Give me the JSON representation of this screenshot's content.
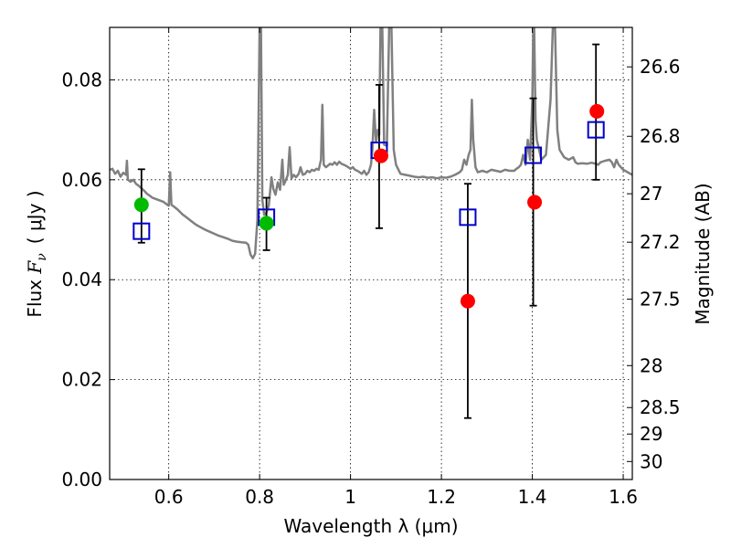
{
  "chart_data": {
    "type": "scatter",
    "xlabel": "Wavelength  λ (μm)",
    "ylabel": "Flux  F_ν  ( μJy )",
    "ylabel_parts": {
      "prefix": "Flux ",
      "symbol": "F",
      "subscript": "ν",
      "unit": "( μJy )"
    },
    "y2label": "Magnitude (AB)",
    "xlim": [
      0.47,
      1.62
    ],
    "ylim": [
      0.0,
      0.0905
    ],
    "x_ticks": [
      0.6,
      0.8,
      1.0,
      1.2,
      1.4,
      1.6
    ],
    "x_tick_labels": [
      "0.6",
      "0.8",
      "1",
      "1.2",
      "1.4",
      "1.6"
    ],
    "y_ticks": [
      0.0,
      0.02,
      0.04,
      0.06,
      0.08
    ],
    "y_tick_labels": [
      "0.00",
      "0.02",
      "0.04",
      "0.06",
      "0.08"
    ],
    "y2_ticks": [
      {
        "label": "26.6",
        "flux": 0.0826
      },
      {
        "label": "26.8",
        "flux": 0.0687
      },
      {
        "label": "27",
        "flux": 0.0572
      },
      {
        "label": "27.2",
        "flux": 0.0475
      },
      {
        "label": "27.5",
        "flux": 0.0361
      },
      {
        "label": "28",
        "flux": 0.0228
      },
      {
        "label": "28.5",
        "flux": 0.0144
      },
      {
        "label": "29",
        "flux": 0.0091
      },
      {
        "label": "30",
        "flux": 0.0036
      }
    ],
    "grid": true,
    "series": [
      {
        "name": "model spectrum",
        "kind": "line",
        "color": "#808080",
        "points": [
          [
            0.47,
            0.062
          ],
          [
            0.476,
            0.0622
          ],
          [
            0.482,
            0.0612
          ],
          [
            0.488,
            0.0618
          ],
          [
            0.494,
            0.0606
          ],
          [
            0.5,
            0.0614
          ],
          [
            0.506,
            0.061
          ],
          [
            0.508,
            0.0638
          ],
          [
            0.51,
            0.06
          ],
          [
            0.516,
            0.0596
          ],
          [
            0.522,
            0.06
          ],
          [
            0.528,
            0.0592
          ],
          [
            0.534,
            0.0588
          ],
          [
            0.54,
            0.0583
          ],
          [
            0.546,
            0.0578
          ],
          [
            0.552,
            0.0572
          ],
          [
            0.558,
            0.0568
          ],
          [
            0.564,
            0.0564
          ],
          [
            0.57,
            0.0562
          ],
          [
            0.576,
            0.056
          ],
          [
            0.582,
            0.0558
          ],
          [
            0.588,
            0.0556
          ],
          [
            0.594,
            0.0552
          ],
          [
            0.6,
            0.0548
          ],
          [
            0.603,
            0.0615
          ],
          [
            0.606,
            0.055
          ],
          [
            0.612,
            0.0546
          ],
          [
            0.62,
            0.054
          ],
          [
            0.63,
            0.0531
          ],
          [
            0.64,
            0.0524
          ],
          [
            0.65,
            0.0517
          ],
          [
            0.66,
            0.051
          ],
          [
            0.67,
            0.0505
          ],
          [
            0.68,
            0.05
          ],
          [
            0.69,
            0.0496
          ],
          [
            0.7,
            0.0492
          ],
          [
            0.71,
            0.0488
          ],
          [
            0.72,
            0.0485
          ],
          [
            0.73,
            0.0482
          ],
          [
            0.74,
            0.0478
          ],
          [
            0.75,
            0.0476
          ],
          [
            0.76,
            0.0475
          ],
          [
            0.77,
            0.0474
          ],
          [
            0.775,
            0.047
          ],
          [
            0.78,
            0.045
          ],
          [
            0.785,
            0.0443
          ],
          [
            0.79,
            0.0452
          ],
          [
            0.795,
            0.052
          ],
          [
            0.8,
            0.0905
          ],
          [
            0.803,
            0.0905
          ],
          [
            0.806,
            0.056
          ],
          [
            0.81,
            0.053
          ],
          [
            0.815,
            0.0534
          ],
          [
            0.82,
            0.0548
          ],
          [
            0.826,
            0.0605
          ],
          [
            0.83,
            0.0582
          ],
          [
            0.835,
            0.057
          ],
          [
            0.84,
            0.0595
          ],
          [
            0.845,
            0.058
          ],
          [
            0.85,
            0.064
          ],
          [
            0.853,
            0.059
          ],
          [
            0.858,
            0.06
          ],
          [
            0.862,
            0.061
          ],
          [
            0.866,
            0.0665
          ],
          [
            0.87,
            0.0603
          ],
          [
            0.875,
            0.061
          ],
          [
            0.88,
            0.0605
          ],
          [
            0.886,
            0.0612
          ],
          [
            0.89,
            0.0625
          ],
          [
            0.895,
            0.061
          ],
          [
            0.9,
            0.0612
          ],
          [
            0.905,
            0.0618
          ],
          [
            0.91,
            0.0615
          ],
          [
            0.915,
            0.062
          ],
          [
            0.92,
            0.0618
          ],
          [
            0.925,
            0.0622
          ],
          [
            0.93,
            0.062
          ],
          [
            0.935,
            0.064
          ],
          [
            0.938,
            0.075
          ],
          [
            0.941,
            0.063
          ],
          [
            0.946,
            0.0625
          ],
          [
            0.95,
            0.0628
          ],
          [
            0.955,
            0.0632
          ],
          [
            0.96,
            0.063
          ],
          [
            0.965,
            0.0635
          ],
          [
            0.97,
            0.063
          ],
          [
            0.975,
            0.0636
          ],
          [
            0.98,
            0.0632
          ],
          [
            0.985,
            0.063
          ],
          [
            0.99,
            0.0628
          ],
          [
            0.995,
            0.0625
          ],
          [
            1.0,
            0.0622
          ],
          [
            1.005,
            0.0625
          ],
          [
            1.01,
            0.062
          ],
          [
            1.015,
            0.0618
          ],
          [
            1.02,
            0.0615
          ],
          [
            1.025,
            0.0612
          ],
          [
            1.03,
            0.0618
          ],
          [
            1.035,
            0.061
          ],
          [
            1.04,
            0.0615
          ],
          [
            1.045,
            0.063
          ],
          [
            1.048,
            0.066
          ],
          [
            1.052,
            0.074
          ],
          [
            1.056,
            0.0675
          ],
          [
            1.06,
            0.07
          ],
          [
            1.063,
            0.069
          ],
          [
            1.066,
            0.0905
          ],
          [
            1.07,
            0.0905
          ],
          [
            1.074,
            0.067
          ],
          [
            1.08,
            0.0668
          ],
          [
            1.085,
            0.0905
          ],
          [
            1.09,
            0.0905
          ],
          [
            1.095,
            0.066
          ],
          [
            1.1,
            0.063
          ],
          [
            1.11,
            0.0612
          ],
          [
            1.12,
            0.061
          ],
          [
            1.13,
            0.0608
          ],
          [
            1.14,
            0.0606
          ],
          [
            1.15,
            0.0605
          ],
          [
            1.16,
            0.0606
          ],
          [
            1.17,
            0.0604
          ],
          [
            1.18,
            0.0605
          ],
          [
            1.19,
            0.0603
          ],
          [
            1.2,
            0.0605
          ],
          [
            1.21,
            0.0604
          ],
          [
            1.22,
            0.0606
          ],
          [
            1.23,
            0.061
          ],
          [
            1.24,
            0.0615
          ],
          [
            1.245,
            0.062
          ],
          [
            1.25,
            0.064
          ],
          [
            1.255,
            0.063
          ],
          [
            1.26,
            0.065
          ],
          [
            1.264,
            0.066
          ],
          [
            1.267,
            0.076
          ],
          [
            1.27,
            0.068
          ],
          [
            1.275,
            0.0625
          ],
          [
            1.28,
            0.0615
          ],
          [
            1.29,
            0.0618
          ],
          [
            1.3,
            0.0615
          ],
          [
            1.31,
            0.062
          ],
          [
            1.32,
            0.0618
          ],
          [
            1.33,
            0.0616
          ],
          [
            1.34,
            0.062
          ],
          [
            1.35,
            0.0618
          ],
          [
            1.36,
            0.0618
          ],
          [
            1.365,
            0.0622
          ],
          [
            1.37,
            0.0625
          ],
          [
            1.375,
            0.063
          ],
          [
            1.38,
            0.065
          ],
          [
            1.385,
            0.063
          ],
          [
            1.39,
            0.068
          ],
          [
            1.395,
            0.064
          ],
          [
            1.4,
            0.076
          ],
          [
            1.402,
            0.0905
          ],
          [
            1.404,
            0.0905
          ],
          [
            1.407,
            0.072
          ],
          [
            1.41,
            0.068
          ],
          [
            1.415,
            0.066
          ],
          [
            1.42,
            0.064
          ],
          [
            1.43,
            0.065
          ],
          [
            1.44,
            0.076
          ],
          [
            1.445,
            0.0905
          ],
          [
            1.45,
            0.0905
          ],
          [
            1.455,
            0.07
          ],
          [
            1.46,
            0.066
          ],
          [
            1.47,
            0.0645
          ],
          [
            1.48,
            0.064
          ],
          [
            1.49,
            0.0645
          ],
          [
            1.495,
            0.0635
          ],
          [
            1.5,
            0.0632
          ],
          [
            1.51,
            0.0633
          ],
          [
            1.52,
            0.0632
          ],
          [
            1.53,
            0.0634
          ],
          [
            1.54,
            0.0632
          ],
          [
            1.545,
            0.063
          ],
          [
            1.55,
            0.0635
          ],
          [
            1.56,
            0.0638
          ],
          [
            1.57,
            0.064
          ],
          [
            1.575,
            0.0635
          ],
          [
            1.58,
            0.0625
          ],
          [
            1.585,
            0.064
          ],
          [
            1.59,
            0.063
          ],
          [
            1.6,
            0.062
          ],
          [
            1.61,
            0.0615
          ],
          [
            1.62,
            0.061
          ]
        ]
      },
      {
        "name": "green points",
        "kind": "circle",
        "color": "#00bb00",
        "points": [
          [
            0.54,
            0.055
          ],
          [
            0.815,
            0.0513
          ]
        ]
      },
      {
        "name": "red points",
        "kind": "circle",
        "color": "#ff0000",
        "points": [
          [
            1.067,
            0.0648
          ],
          [
            1.258,
            0.0357
          ],
          [
            1.405,
            0.0555
          ],
          [
            1.542,
            0.0737
          ]
        ]
      },
      {
        "name": "blue squares",
        "kind": "square",
        "color": "#0000cc",
        "points": [
          [
            0.54,
            0.0497
          ],
          [
            0.815,
            0.0525
          ],
          [
            1.063,
            0.0659
          ],
          [
            1.258,
            0.0525
          ],
          [
            1.402,
            0.0649
          ],
          [
            1.54,
            0.07
          ]
        ]
      },
      {
        "name": "error bars",
        "kind": "errorbar",
        "color": "#000000",
        "bars": [
          {
            "x": 0.54,
            "low": 0.0474,
            "high": 0.0621
          },
          {
            "x": 0.815,
            "low": 0.0459,
            "high": 0.0564
          },
          {
            "x": 1.063,
            "low": 0.0503,
            "high": 0.079
          },
          {
            "x": 1.258,
            "low": 0.0123,
            "high": 0.0592
          },
          {
            "x": 1.402,
            "low": 0.0348,
            "high": 0.0763
          },
          {
            "x": 1.54,
            "low": 0.06,
            "high": 0.0871
          }
        ]
      }
    ]
  }
}
